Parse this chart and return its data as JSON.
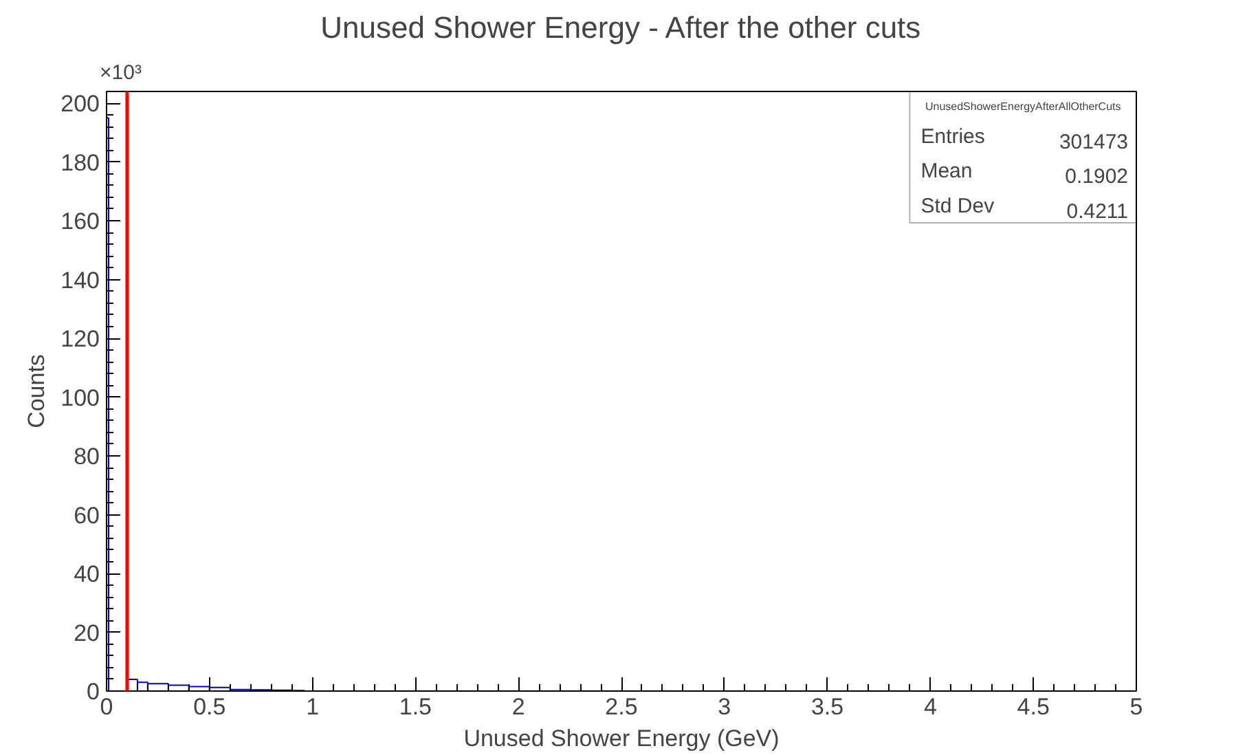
{
  "chart_data": {
    "type": "histogram",
    "title": "Unused Shower Energy - After the other cuts",
    "xlabel": "Unused Shower Energy (GeV)",
    "ylabel": "Counts",
    "bins": [
      0,
      0.01,
      0.1,
      0.15,
      0.2,
      0.3,
      0.4,
      0.5,
      0.6,
      0.7,
      0.8,
      0.9,
      0.96,
      5
    ],
    "values": [
      195,
      0,
      4,
      3,
      2.5,
      2,
      1.5,
      1.2,
      0.5,
      0.4,
      0.3,
      0.2,
      0
    ],
    "color": "#0000cc",
    "xlim": [
      0,
      5
    ],
    "ylim": [
      0,
      204
    ],
    "xticks": [
      0,
      0.5,
      1,
      1.5,
      2,
      2.5,
      3,
      3.5,
      4,
      4.5,
      5
    ],
    "yticks": [
      0,
      20,
      40,
      60,
      80,
      100,
      120,
      140,
      160,
      180,
      200
    ],
    "ref_lines": [
      {
        "axis": "x",
        "value": 0.1,
        "color": "#ff0000"
      }
    ],
    "annotations": [
      "×10³",
      "UnusedShowerEnergyAfterAllOtherCuts",
      "Entries",
      "301473",
      "Mean",
      "0.1902",
      "Std Dev",
      "0.4211"
    ],
    "grid": false
  }
}
